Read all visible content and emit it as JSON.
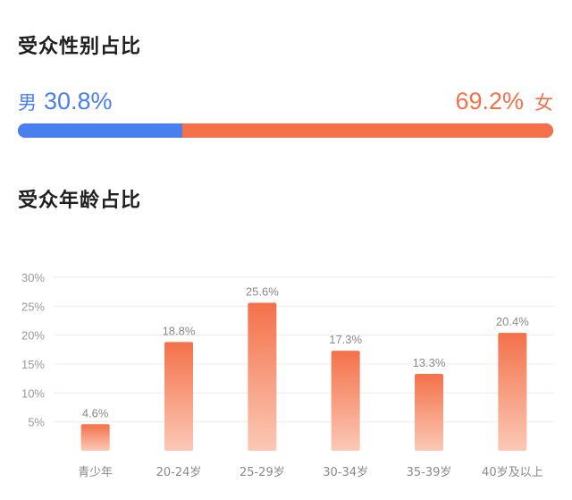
{
  "gender": {
    "title": "受众性别占比",
    "male_label": "男",
    "male_pct_text": "30.8%",
    "male_pct": 30.8,
    "female_label": "女",
    "female_pct_text": "69.2%",
    "female_pct": 69.2,
    "male_color": "#4a7ff0",
    "female_color": "#f4714a"
  },
  "age": {
    "title": "受众年龄占比"
  },
  "chart_data": {
    "type": "bar",
    "title": "受众年龄占比",
    "xlabel": "",
    "ylabel": "",
    "categories": [
      "青少年",
      "20-24岁",
      "25-29岁",
      "30-34岁",
      "35-39岁",
      "40岁及以上"
    ],
    "values": [
      4.6,
      18.8,
      25.6,
      17.3,
      13.3,
      20.4
    ],
    "value_labels": [
      "4.6%",
      "18.8%",
      "25.6%",
      "17.3%",
      "13.3%",
      "20.4%"
    ],
    "yticks": [
      5,
      10,
      15,
      20,
      25,
      30
    ],
    "ytick_labels": [
      "5%",
      "10%",
      "15%",
      "20%",
      "25%",
      "30%"
    ],
    "ylim": [
      0,
      30
    ],
    "grid": true,
    "bar_color_top": "#f4714a",
    "bar_color_bottom": "#fbc9b6"
  }
}
